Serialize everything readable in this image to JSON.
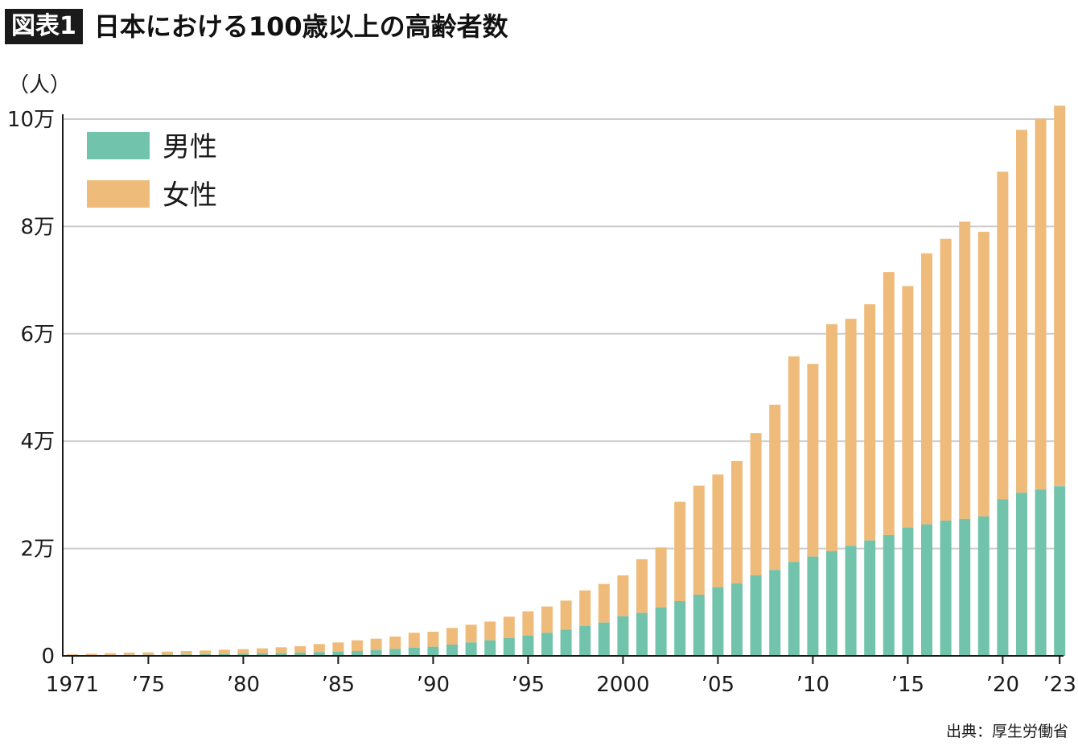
{
  "header": {
    "badge": "図表1",
    "title": "日本における100歳以上の高齢者数"
  },
  "source": "出典：厚生労働省",
  "colors": {
    "male": "#72c3ab",
    "female": "#eebb7b",
    "grid": "#cccccc",
    "axis": "#1a1a1a"
  },
  "chart_data": {
    "type": "bar",
    "stacked": true,
    "ylabel": "（人）",
    "ylim": [
      0,
      100000
    ],
    "y_ticks": [
      {
        "value": 0,
        "label": "0"
      },
      {
        "value": 20000,
        "label": "2万"
      },
      {
        "value": 40000,
        "label": "4万"
      },
      {
        "value": 60000,
        "label": "6万"
      },
      {
        "value": 80000,
        "label": "8万"
      },
      {
        "value": 100000,
        "label": "10万"
      }
    ],
    "x_ticks": [
      {
        "year": 1971,
        "label": "1971"
      },
      {
        "year": 1975,
        "label": "’75"
      },
      {
        "year": 1980,
        "label": "’80"
      },
      {
        "year": 1985,
        "label": "’85"
      },
      {
        "year": 1990,
        "label": "’90"
      },
      {
        "year": 1995,
        "label": "’95"
      },
      {
        "year": 2000,
        "label": "2000"
      },
      {
        "year": 2005,
        "label": "’05"
      },
      {
        "year": 2010,
        "label": "’10"
      },
      {
        "year": 2015,
        "label": "’15"
      },
      {
        "year": 2020,
        "label": "’20"
      },
      {
        "year": 2023,
        "label": "’23"
      }
    ],
    "legend": {
      "position": "top-left"
    },
    "grid": true,
    "categories": [
      1971,
      1972,
      1973,
      1974,
      1975,
      1976,
      1977,
      1978,
      1979,
      1980,
      1981,
      1982,
      1983,
      1984,
      1985,
      1986,
      1987,
      1988,
      1989,
      1990,
      1991,
      1992,
      1993,
      1994,
      1995,
      1996,
      1997,
      1998,
      1999,
      2000,
      2001,
      2002,
      2003,
      2004,
      2005,
      2006,
      2007,
      2008,
      2009,
      2010,
      2011,
      2012,
      2013,
      2014,
      2015,
      2016,
      2017,
      2018,
      2019,
      2020,
      2021,
      2022,
      2023
    ],
    "series": [
      {
        "name": "男性",
        "values": [
          100,
          120,
          150,
          170,
          200,
          220,
          250,
          300,
          350,
          400,
          450,
          500,
          600,
          700,
          800,
          900,
          1100,
          1300,
          1500,
          1700,
          2100,
          2500,
          2900,
          3300,
          3800,
          4300,
          4900,
          5600,
          6200,
          7400,
          8000,
          9000,
          10200,
          11400,
          12800,
          13500,
          15000,
          16000,
          17500,
          18500,
          19500,
          20500,
          21500,
          22500,
          23900,
          24500,
          25200,
          25500,
          26000,
          29200,
          30400,
          31000,
          31600
        ]
      },
      {
        "name": "女性",
        "values": [
          200,
          280,
          350,
          430,
          450,
          580,
          650,
          700,
          800,
          850,
          950,
          1100,
          1200,
          1500,
          1700,
          2000,
          2100,
          2300,
          2800,
          2800,
          3100,
          3300,
          3500,
          4000,
          4500,
          4900,
          5400,
          6600,
          7200,
          7600,
          10000,
          11200,
          18500,
          20300,
          21000,
          22800,
          26500,
          30800,
          38300,
          35900,
          42300,
          42300,
          44000,
          49000,
          45000,
          50500,
          52500,
          55400,
          53000,
          61000,
          67600,
          69100,
          70900
        ]
      }
    ]
  }
}
